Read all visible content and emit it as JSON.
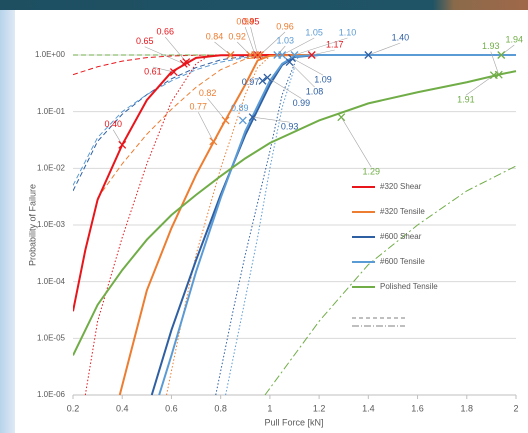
{
  "chart_data": {
    "type": "line",
    "xlabel": "Pull Force [kN]",
    "ylabel": "Probability of Failure",
    "xlim": [
      0.2,
      2
    ],
    "xticks": [
      0.2,
      0.4,
      0.6,
      0.8,
      1,
      1.2,
      1.4,
      1.6,
      1.8,
      2
    ],
    "ylim": [
      1e-06,
      1
    ],
    "ylog": true,
    "yticks": [
      {
        "value": 1e-06,
        "label": "1.0E-06"
      },
      {
        "value": 1e-05,
        "label": "1.0E-05"
      },
      {
        "value": 0.0001,
        "label": "1.0E-04"
      },
      {
        "value": 0.001,
        "label": "1.0E-03"
      },
      {
        "value": 0.01,
        "label": "1.0E-02"
      },
      {
        "value": 0.1,
        "label": "1.0E-01"
      },
      {
        "value": 1,
        "label": "1.0E+00"
      }
    ],
    "grid": true,
    "legend": "right",
    "series": [
      {
        "name": "#320 Shear",
        "color": "#e8151b",
        "style": "solid",
        "x": [
          0.2,
          0.25,
          0.3,
          0.4,
          0.5,
          0.6,
          0.7,
          0.8,
          1.0,
          2.0
        ],
        "values": [
          3e-05,
          0.00036,
          0.0028,
          0.026,
          0.16,
          0.5,
          0.89,
          0.99,
          1,
          1
        ]
      },
      {
        "name": "#320 Tensile",
        "color": "#ed7d31",
        "style": "solid",
        "x": [
          0.39,
          0.5,
          0.6,
          0.7,
          0.8,
          0.9,
          0.95,
          1.0,
          1.1,
          2.0
        ],
        "values": [
          1e-06,
          7e-05,
          0.00088,
          0.0077,
          0.05,
          0.3,
          0.8,
          0.97,
          1,
          1
        ]
      },
      {
        "name": "#600 Shear",
        "color": "#2e5fa3",
        "style": "solid",
        "x": [
          0.52,
          0.6,
          0.7,
          0.8,
          0.9,
          1.0,
          1.05,
          1.1,
          1.2,
          2.0
        ],
        "values": [
          1e-06,
          1.4e-05,
          0.00024,
          0.0034,
          0.039,
          0.3,
          0.67,
          0.92,
          1,
          1
        ]
      },
      {
        "name": "#600 Tensile",
        "color": "#5b9bd5",
        "style": "solid",
        "x": [
          0.55,
          0.6,
          0.7,
          0.8,
          0.9,
          1.0,
          1.05,
          1.1,
          1.2,
          2.0
        ],
        "values": [
          1e-06,
          5e-06,
          0.00015,
          0.003,
          0.045,
          0.35,
          0.7,
          0.95,
          1,
          1
        ]
      },
      {
        "name": "Polished Tensile",
        "color": "#70ad47",
        "style": "solid",
        "x": [
          0.2,
          0.3,
          0.4,
          0.5,
          0.6,
          0.7,
          0.8,
          0.9,
          1.0,
          1.2,
          1.4,
          1.6,
          1.8,
          1.94,
          2.0
        ],
        "values": [
          5e-06,
          3.9e-05,
          0.00016,
          0.00055,
          0.0015,
          0.0034,
          0.0073,
          0.015,
          0.028,
          0.07,
          0.14,
          0.22,
          0.33,
          0.46,
          0.52
        ]
      },
      {
        "color": "#e8151b",
        "style": "dashed",
        "x": [
          0.2,
          0.3,
          0.4,
          0.5,
          0.6,
          0.7,
          0.8,
          1.0,
          2.0
        ],
        "values": [
          0.45,
          0.62,
          0.78,
          0.9,
          0.96,
          0.99,
          1,
          1,
          1
        ]
      },
      {
        "color": "#ed7d31",
        "style": "dashed",
        "x": [
          0.3,
          0.4,
          0.5,
          0.6,
          0.7,
          0.8,
          0.9,
          1.0,
          1.2,
          2.0
        ],
        "values": [
          0.003,
          0.012,
          0.04,
          0.11,
          0.27,
          0.55,
          0.85,
          0.98,
          1,
          1
        ]
      },
      {
        "color": "#2e5fa3",
        "style": "dashed",
        "x": [
          0.2,
          0.3,
          0.4,
          0.5,
          0.6,
          0.7,
          0.8,
          0.9,
          1.0,
          1.2,
          2.0
        ],
        "values": [
          0.004,
          0.03,
          0.09,
          0.2,
          0.38,
          0.6,
          0.82,
          0.95,
          0.99,
          1,
          1
        ]
      },
      {
        "color": "#5b9bd5",
        "style": "dashed",
        "x": [
          0.2,
          0.3,
          0.4,
          0.5,
          0.6,
          0.7,
          0.8,
          0.9,
          1.0,
          1.2,
          2.0
        ],
        "values": [
          0.005,
          0.035,
          0.1,
          0.2,
          0.35,
          0.55,
          0.75,
          0.9,
          0.98,
          1,
          1
        ]
      },
      {
        "color": "#70ad47",
        "style": "dashed",
        "x": [
          0.2,
          2.0
        ],
        "values": [
          1,
          1
        ]
      },
      {
        "color": "#e8151b",
        "style": "dotted",
        "x": [
          0.25,
          0.3,
          0.4,
          0.5,
          0.6,
          0.7,
          0.75
        ],
        "values": [
          1e-06,
          2e-05,
          0.0006,
          0.012,
          0.15,
          0.7,
          0.95
        ]
      },
      {
        "color": "#ed7d31",
        "style": "dotted",
        "x": [
          0.58,
          0.65,
          0.7,
          0.8,
          0.9,
          0.95,
          1.0
        ],
        "values": [
          1e-06,
          3e-05,
          0.0003,
          0.01,
          0.2,
          0.6,
          0.95
        ]
      },
      {
        "color": "#2e5fa3",
        "style": "dotted",
        "x": [
          0.78,
          0.85,
          0.9,
          1.0,
          1.05,
          1.1
        ],
        "values": [
          1e-06,
          3e-05,
          0.0003,
          0.02,
          0.2,
          0.7
        ]
      },
      {
        "color": "#5b9bd5",
        "style": "dotted",
        "x": [
          0.82,
          0.9,
          0.95,
          1.0,
          1.05,
          1.1
        ],
        "values": [
          1e-06,
          5e-05,
          0.0006,
          0.01,
          0.12,
          0.6
        ]
      },
      {
        "color": "#70ad47",
        "style": "dashdot",
        "x": [
          0.98,
          1.2,
          1.4,
          1.6,
          1.8,
          2.0
        ],
        "values": [
          1e-06,
          2e-05,
          0.0002,
          0.001,
          0.004,
          0.011
        ]
      }
    ],
    "annotations": [
      {
        "label": "0.40",
        "x": 0.4,
        "y": 0.026,
        "color": "#e8151b"
      },
      {
        "label": "0.61",
        "x": 0.61,
        "y": 0.5,
        "color": "#e8151b"
      },
      {
        "label": "0.65",
        "x": 0.65,
        "y": 0.7,
        "color": "#e8151b"
      },
      {
        "label": "0.66",
        "x": 0.66,
        "y": 0.75,
        "color": "#e8151b"
      },
      {
        "label": "0.95",
        "x": 0.95,
        "y": 1,
        "color": "#e8151b"
      },
      {
        "label": "1.17",
        "x": 1.17,
        "y": 1,
        "color": "#e8151b"
      },
      {
        "label": "0.77",
        "x": 0.77,
        "y": 0.03,
        "color": "#ed7d31"
      },
      {
        "label": "0.82",
        "x": 0.82,
        "y": 0.07,
        "color": "#ed7d31"
      },
      {
        "label": "0.84",
        "x": 0.84,
        "y": 1,
        "color": "#ed7d31"
      },
      {
        "label": "0.92",
        "x": 0.92,
        "y": 1,
        "color": "#ed7d31"
      },
      {
        "label": "0.94",
        "x": 0.94,
        "y": 1,
        "color": "#ed7d31"
      },
      {
        "label": "0.96",
        "x": 0.96,
        "y": 1,
        "color": "#ed7d31"
      },
      {
        "label": "0.89",
        "x": 0.89,
        "y": 0.07,
        "color": "#5b9bd5"
      },
      {
        "label": "0.93",
        "x": 0.93,
        "y": 0.08,
        "color": "#2e5fa3"
      },
      {
        "label": "0.97",
        "x": 0.97,
        "y": 0.35,
        "color": "#2e5fa3"
      },
      {
        "label": "0.99",
        "x": 0.99,
        "y": 0.4,
        "color": "#2e5fa3"
      },
      {
        "label": "1.08",
        "x": 1.08,
        "y": 0.75,
        "color": "#2e5fa3"
      },
      {
        "label": "1.09",
        "x": 1.09,
        "y": 0.88,
        "color": "#2e5fa3"
      },
      {
        "label": "1.40",
        "x": 1.4,
        "y": 1,
        "color": "#2e5fa3"
      },
      {
        "label": "1.03",
        "x": 1.03,
        "y": 1,
        "color": "#5b9bd5"
      },
      {
        "label": "1.05",
        "x": 1.05,
        "y": 1,
        "color": "#5b9bd5"
      },
      {
        "label": "1.10",
        "x": 1.1,
        "y": 1,
        "color": "#5b9bd5"
      },
      {
        "label": "1.29",
        "x": 1.29,
        "y": 0.08,
        "color": "#70ad47"
      },
      {
        "label": "1.91",
        "x": 1.91,
        "y": 0.44,
        "color": "#70ad47"
      },
      {
        "label": "1.93",
        "x": 1.93,
        "y": 0.45,
        "color": "#70ad47"
      },
      {
        "label": "1.94",
        "x": 1.94,
        "y": 1,
        "color": "#70ad47"
      }
    ]
  }
}
